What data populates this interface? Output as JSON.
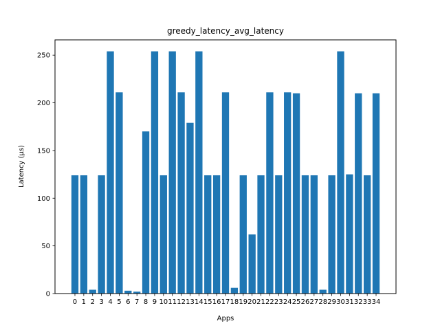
{
  "chart_data": {
    "type": "bar",
    "title": "greedy_latency_avg_latency",
    "xlabel": "Apps",
    "ylabel": "Latency (µs)",
    "categories": [
      "0",
      "1",
      "2",
      "3",
      "4",
      "5",
      "6",
      "7",
      "8",
      "9",
      "10",
      "11",
      "12",
      "13",
      "14",
      "15",
      "16",
      "17",
      "18",
      "19",
      "20",
      "21",
      "22",
      "23",
      "24",
      "25",
      "26",
      "27",
      "28",
      "29",
      "30",
      "31",
      "32",
      "33",
      "34"
    ],
    "values": [
      124,
      124,
      4,
      124,
      254,
      211,
      3,
      2,
      170,
      254,
      124,
      254,
      211,
      179,
      254,
      124,
      124,
      211,
      6,
      124,
      62,
      124,
      211,
      124,
      211,
      210,
      124,
      124,
      4,
      124,
      254,
      125,
      210,
      124,
      210
    ],
    "ylim": [
      0,
      266
    ],
    "yticks": [
      0,
      50,
      100,
      150,
      200,
      250
    ],
    "bar_color": "#1f77b4",
    "grid": false,
    "legend": "none"
  }
}
